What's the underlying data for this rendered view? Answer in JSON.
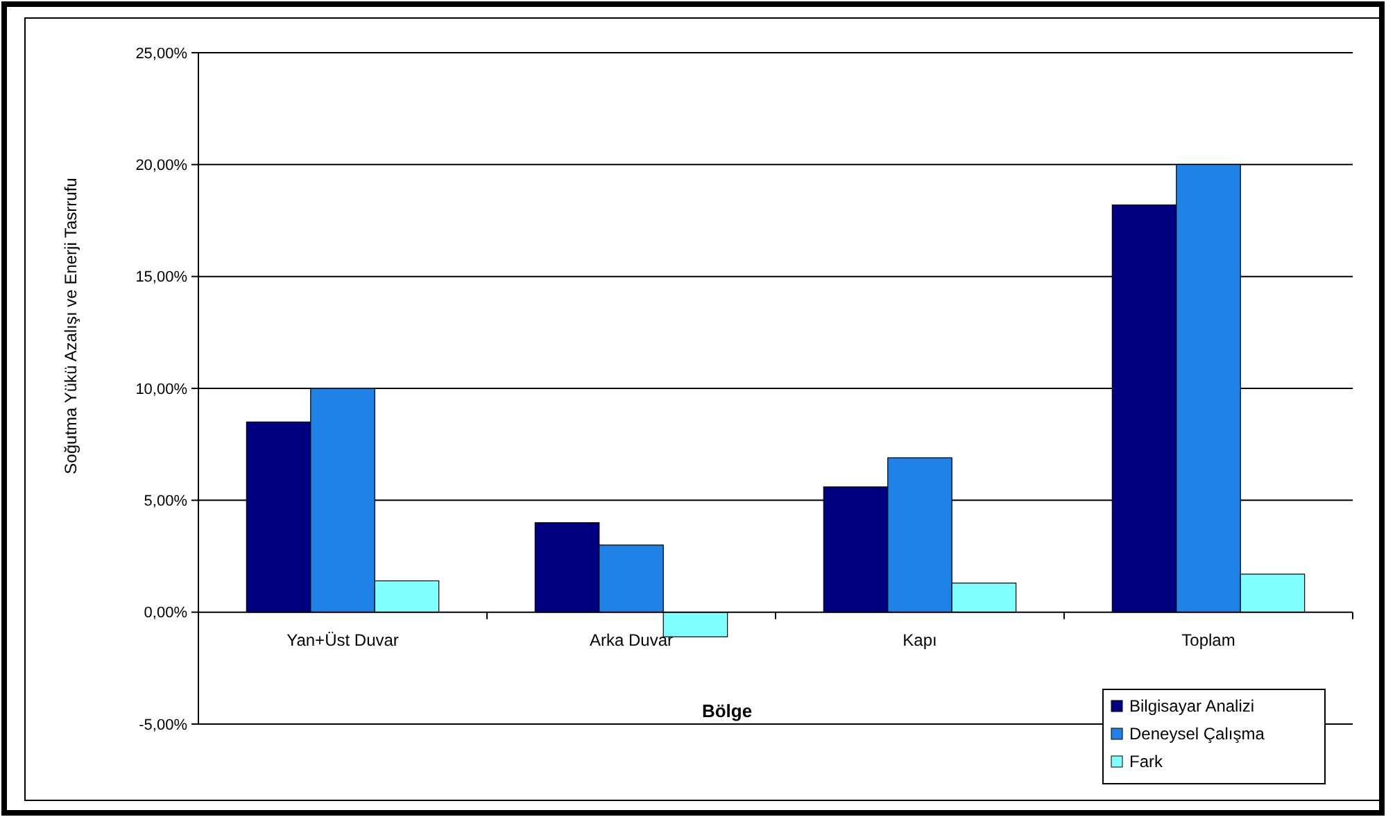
{
  "chart_data": {
    "type": "bar",
    "xlabel": "Bölge",
    "ylabel": "Soğutma Yükü Azalışı ve Enerji Tasrrufu",
    "categories": [
      "Yan+Üst Duvar",
      "Arka Duvar",
      "Kapı",
      "Toplam"
    ],
    "series": [
      {
        "name": "Bilgisayar Analizi",
        "color": "#000080",
        "values": [
          8.5,
          4.0,
          5.6,
          18.2
        ]
      },
      {
        "name": "Deneysel Çalışma",
        "color": "#1e82e6",
        "values": [
          10.0,
          3.0,
          6.9,
          20.0
        ]
      },
      {
        "name": "Fark",
        "color": "#80ffff",
        "values": [
          1.4,
          -1.1,
          1.3,
          1.7
        ]
      }
    ],
    "ylim": [
      -5,
      25
    ],
    "yticks": [
      {
        "value": -5,
        "label": "-5,00%"
      },
      {
        "value": 0,
        "label": "0,00%"
      },
      {
        "value": 5,
        "label": "5,00%"
      },
      {
        "value": 10,
        "label": "10,00%"
      },
      {
        "value": 15,
        "label": "15,00%"
      },
      {
        "value": 20,
        "label": "20,00%"
      },
      {
        "value": 25,
        "label": "25,00%"
      }
    ],
    "grid": "y",
    "legend": "bottom right"
  }
}
